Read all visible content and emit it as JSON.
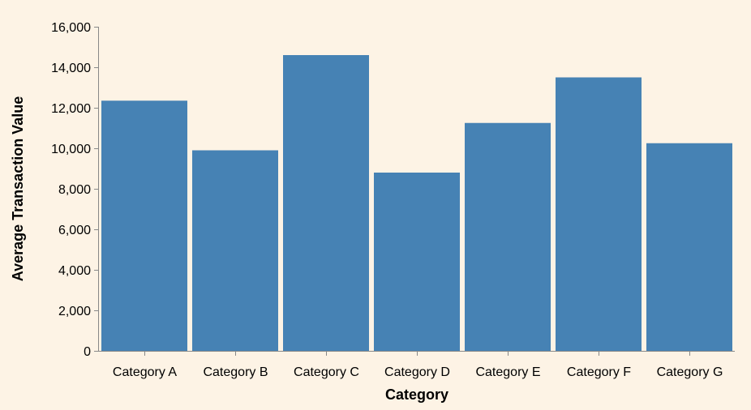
{
  "chart_data": {
    "type": "bar",
    "title": "",
    "xlabel": "Category",
    "ylabel": "Average Transaction Value",
    "categories": [
      "Category A",
      "Category B",
      "Category C",
      "Category D",
      "Category E",
      "Category F",
      "Category G"
    ],
    "values": [
      12350,
      9900,
      14600,
      8800,
      11250,
      13500,
      10250
    ],
    "ylim": [
      0,
      16000
    ],
    "yticks": [
      0,
      2000,
      4000,
      6000,
      8000,
      10000,
      12000,
      14000,
      16000
    ],
    "ytick_labels": [
      "0",
      "2,000",
      "4,000",
      "6,000",
      "8,000",
      "10,000",
      "12,000",
      "14,000",
      "16,000"
    ],
    "grid": false,
    "legend": "none",
    "colors": {
      "bar": "#4682b4",
      "background": "#fdf3e5",
      "axis": "#888888"
    }
  }
}
